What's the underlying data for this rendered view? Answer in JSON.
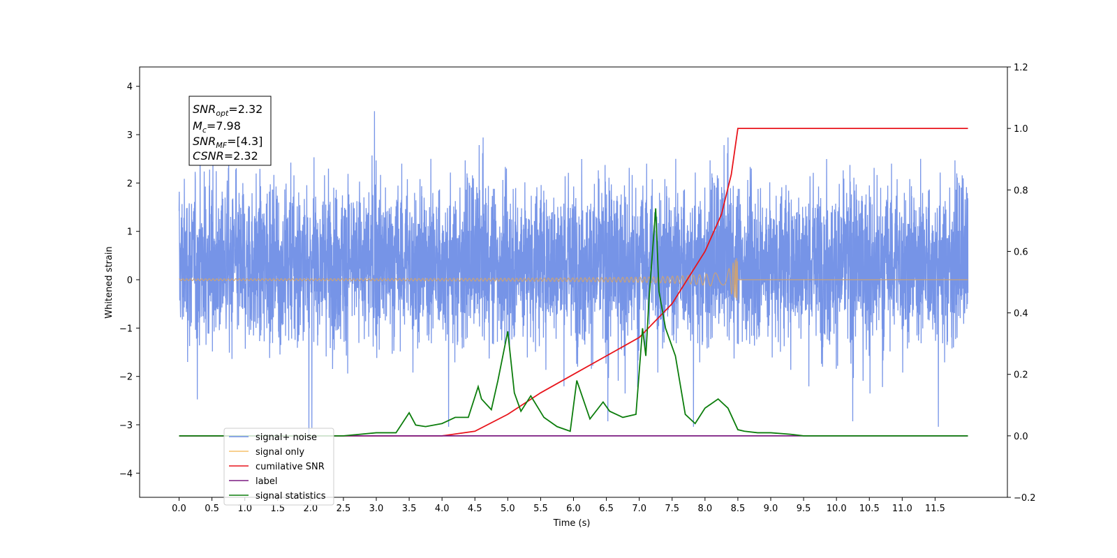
{
  "chart_data": {
    "type": "line",
    "xlabel": "Time (s)",
    "ylabel": "Whitened strain",
    "xlim": [
      -0.6,
      12.6
    ],
    "ylim": [
      -4.5,
      4.4
    ],
    "y2lim": [
      -0.2,
      1.2
    ],
    "x_ticks": [
      "0.0",
      "0.5",
      "1.0",
      "1.5",
      "2.0",
      "2.5",
      "3.0",
      "3.5",
      "4.0",
      "4.5",
      "5.0",
      "5.5",
      "6.0",
      "6.5",
      "7.0",
      "7.5",
      "8.0",
      "8.5",
      "9.0",
      "9.5",
      "10.0",
      "10.5",
      "11.0",
      "11.5"
    ],
    "y_ticks": [
      "−4",
      "−3",
      "−2",
      "−1",
      "0",
      "1",
      "2",
      "3",
      "4"
    ],
    "y2_ticks": [
      "−0.2",
      "0.0",
      "0.2",
      "0.4",
      "0.6",
      "0.8",
      "1.0",
      "1.2"
    ],
    "legend_position": "lower-left",
    "stats_box": {
      "line1": "=2.32",
      "line2": "=7.98",
      "line3": "=[4.3]",
      "line4": "=2.32"
    },
    "series": [
      {
        "name": "signal+ noise",
        "color": "#6f8ee6",
        "axis": "left",
        "description": "dense noise oscillating roughly between -3 and 3.8 over 0 to 12 s"
      },
      {
        "name": "signal only",
        "color": "#f5c16c",
        "axis": "left",
        "description": "chirp near 0 growing until 8.5 s"
      },
      {
        "name": "cumilative SNR",
        "color": "#e8141b",
        "axis": "right",
        "x": [
          0.0,
          4.0,
          4.5,
          5.0,
          5.5,
          6.0,
          6.5,
          7.0,
          7.5,
          8.0,
          8.25,
          8.4,
          8.48,
          8.5,
          12.0
        ],
        "y": [
          0.0,
          0.0,
          0.015,
          0.07,
          0.14,
          0.2,
          0.26,
          0.32,
          0.43,
          0.6,
          0.72,
          0.85,
          0.97,
          1.0,
          1.0
        ]
      },
      {
        "name": "label",
        "color": "#7b1a80",
        "axis": "right",
        "x": [
          0.0,
          12.0
        ],
        "y": [
          0.0,
          0.0
        ]
      },
      {
        "name": "signal statistics",
        "color": "#0c7d0c",
        "axis": "right",
        "x": [
          0.0,
          2.5,
          3.0,
          3.3,
          3.5,
          3.6,
          3.75,
          4.0,
          4.2,
          4.4,
          4.55,
          4.6,
          4.75,
          4.85,
          5.0,
          5.1,
          5.2,
          5.35,
          5.55,
          5.75,
          5.95,
          6.05,
          6.25,
          6.45,
          6.55,
          6.75,
          6.95,
          7.05,
          7.1,
          7.15,
          7.25,
          7.3,
          7.4,
          7.55,
          7.7,
          7.85,
          8.0,
          8.2,
          8.35,
          8.5,
          8.6,
          8.8,
          9.0,
          9.3,
          9.5,
          10.0,
          11.0,
          12.0
        ],
        "y": [
          0.0,
          0.0,
          0.01,
          0.01,
          0.075,
          0.035,
          0.03,
          0.04,
          0.06,
          0.06,
          0.16,
          0.12,
          0.085,
          0.18,
          0.34,
          0.14,
          0.08,
          0.13,
          0.06,
          0.03,
          0.015,
          0.18,
          0.055,
          0.11,
          0.08,
          0.06,
          0.07,
          0.35,
          0.26,
          0.45,
          0.74,
          0.47,
          0.35,
          0.26,
          0.07,
          0.04,
          0.09,
          0.12,
          0.09,
          0.02,
          0.015,
          0.01,
          0.01,
          0.005,
          0.0,
          0.0,
          0.0,
          0.0
        ]
      }
    ]
  }
}
